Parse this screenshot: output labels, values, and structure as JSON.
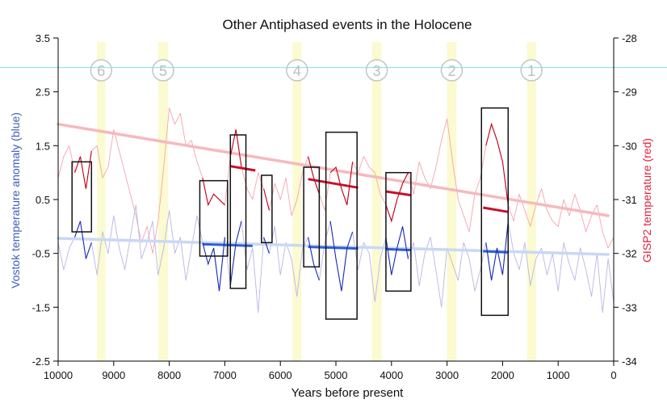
{
  "chart_data": {
    "type": "line",
    "title": "Other Antiphased events in the Holocene",
    "xlabel": "Years before present",
    "ylabel_left": "Vostok temperature anomaly (blue)",
    "ylabel_right": "GISP2 temperature (red)",
    "x_range": [
      10000,
      0
    ],
    "y_left_range": [
      -2.5,
      3.5
    ],
    "y_right_range": [
      -34,
      -28
    ],
    "x_ticks": [
      10000,
      9000,
      8000,
      7000,
      6000,
      5000,
      4000,
      3000,
      2000,
      1000,
      0
    ],
    "y_left_ticks": [
      3.5,
      2.5,
      1.5,
      0.5,
      -0.5,
      -1.5,
      -2.5
    ],
    "y_left_tick_labels": [
      "3.5",
      "2.5",
      "1.5",
      "0.5",
      "-0.5",
      "-1.5",
      "-2.5"
    ],
    "y_right_ticks": [
      -28,
      -29,
      -30,
      -31,
      -32,
      -33,
      -34
    ],
    "cyan_reference_left_value": 2.95,
    "event_bands": [
      {
        "label": "6",
        "from": 9300,
        "to": 9150
      },
      {
        "label": "5",
        "from": 8200,
        "to": 8020
      },
      {
        "label": "4",
        "from": 5780,
        "to": 5620
      },
      {
        "label": "3",
        "from": 4350,
        "to": 4180
      },
      {
        "label": "2",
        "from": 3000,
        "to": 2830
      },
      {
        "label": "1",
        "from": 1560,
        "to": 1400
      }
    ],
    "trend_lines": [
      {
        "name": "GISP2 trend",
        "axis": "right",
        "x": [
          10000,
          100
        ],
        "y": [
          -29.6,
          -31.3
        ]
      },
      {
        "name": "Vostok trend",
        "axis": "left",
        "x": [
          10000,
          100
        ],
        "y": [
          -0.22,
          -0.52
        ]
      }
    ],
    "highlight_segments": [
      {
        "axis": "right",
        "x": [
          6900,
          6450
        ],
        "y": [
          -30.38,
          -30.46
        ]
      },
      {
        "axis": "right",
        "x": [
          5500,
          4600
        ],
        "y": [
          -30.62,
          -30.78
        ]
      },
      {
        "axis": "right",
        "x": [
          4100,
          3650
        ],
        "y": [
          -30.85,
          -30.92
        ]
      },
      {
        "axis": "right",
        "x": [
          2350,
          1900
        ],
        "y": [
          -31.15,
          -31.23
        ]
      },
      {
        "axis": "left",
        "x": [
          7400,
          6500
        ],
        "y": [
          -0.33,
          -0.36
        ]
      },
      {
        "axis": "left",
        "x": [
          5500,
          4600
        ],
        "y": [
          -0.38,
          -0.41
        ]
      },
      {
        "axis": "left",
        "x": [
          4100,
          3650
        ],
        "y": [
          -0.42,
          -0.44
        ]
      },
      {
        "axis": "left",
        "x": [
          2350,
          1900
        ],
        "y": [
          -0.46,
          -0.48
        ]
      }
    ],
    "event_boxes": [
      {
        "x_from": 9750,
        "x_to": 9400,
        "y_left_top": 1.2,
        "y_left_bottom": -0.1
      },
      {
        "x_from": 7450,
        "x_to": 6950,
        "y_left_top": 0.85,
        "y_left_bottom": -0.55
      },
      {
        "x_from": 6900,
        "x_to": 6620,
        "y_left_top": 1.7,
        "y_left_bottom": -1.15
      },
      {
        "x_from": 6340,
        "x_to": 6150,
        "y_left_top": 0.95,
        "y_left_bottom": -0.3
      },
      {
        "x_from": 5580,
        "x_to": 5300,
        "y_left_top": 1.1,
        "y_left_bottom": -0.75
      },
      {
        "x_from": 5180,
        "x_to": 4620,
        "y_left_top": 1.75,
        "y_left_bottom": -1.72
      },
      {
        "x_from": 4100,
        "x_to": 3650,
        "y_left_top": 1.0,
        "y_left_bottom": -1.2
      },
      {
        "x_from": 2380,
        "x_to": 1900,
        "y_left_top": 2.2,
        "y_left_bottom": -1.65
      }
    ],
    "series": [
      {
        "name": "GISP2 temperature (red)",
        "axis": "right",
        "x": [
          10000,
          9900,
          9800,
          9700,
          9600,
          9500,
          9400,
          9300,
          9200,
          9100,
          9000,
          8900,
          8800,
          8700,
          8600,
          8500,
          8400,
          8300,
          8200,
          8100,
          8000,
          7900,
          7800,
          7700,
          7600,
          7500,
          7400,
          7300,
          7200,
          7100,
          7000,
          6900,
          6800,
          6700,
          6600,
          6500,
          6400,
          6300,
          6200,
          6100,
          6000,
          5900,
          5800,
          5700,
          5600,
          5500,
          5400,
          5300,
          5200,
          5100,
          5000,
          4900,
          4800,
          4700,
          4600,
          4500,
          4400,
          4300,
          4200,
          4100,
          4000,
          3900,
          3800,
          3700,
          3600,
          3500,
          3400,
          3300,
          3200,
          3100,
          3000,
          2900,
          2800,
          2700,
          2600,
          2500,
          2400,
          2300,
          2200,
          2100,
          2000,
          1900,
          1800,
          1700,
          1600,
          1500,
          1400,
          1300,
          1200,
          1100,
          1000,
          900,
          800,
          700,
          600,
          500,
          400,
          300,
          200,
          100,
          0
        ],
        "y": [
          -30.6,
          -30.2,
          -30.0,
          -30.5,
          -30.2,
          -30.8,
          -30.1,
          -30.0,
          -30.6,
          -30.4,
          -29.7,
          -30.1,
          -30.5,
          -30.9,
          -31.3,
          -31.8,
          -31.5,
          -32.0,
          -31.4,
          -30.4,
          -29.3,
          -29.6,
          -29.4,
          -30.0,
          -29.9,
          -30.3,
          -30.6,
          -31.1,
          -30.9,
          -31.0,
          -31.1,
          -30.2,
          -29.7,
          -30.4,
          -30.8,
          -31.0,
          -30.5,
          -30.8,
          -31.2,
          -30.7,
          -31.0,
          -30.6,
          -31.3,
          -31.0,
          -30.5,
          -30.2,
          -30.6,
          -30.9,
          -31.2,
          -30.5,
          -30.4,
          -30.8,
          -31.1,
          -30.3,
          -30.5,
          -30.2,
          -30.4,
          -30.5,
          -30.9,
          -31.1,
          -31.4,
          -31.0,
          -30.7,
          -30.5,
          -30.9,
          -30.3,
          -30.6,
          -30.8,
          -30.4,
          -29.9,
          -29.5,
          -30.3,
          -31.0,
          -31.3,
          -31.6,
          -30.9,
          -30.6,
          -30.0,
          -29.6,
          -29.9,
          -30.3,
          -31.1,
          -31.4,
          -30.9,
          -31.2,
          -31.5,
          -31.1,
          -30.8,
          -31.2,
          -31.4,
          -31.5,
          -31.0,
          -31.3,
          -30.9,
          -31.2,
          -31.6,
          -31.3,
          -31.1,
          -31.6,
          -31.9,
          -31.7
        ]
      },
      {
        "name": "Vostok temperature anomaly (blue)",
        "axis": "left",
        "x": [
          10000,
          9900,
          9800,
          9700,
          9600,
          9500,
          9400,
          9300,
          9200,
          9100,
          9000,
          8900,
          8800,
          8700,
          8600,
          8500,
          8400,
          8300,
          8200,
          8100,
          8000,
          7900,
          7800,
          7700,
          7600,
          7500,
          7400,
          7300,
          7200,
          7100,
          7000,
          6900,
          6800,
          6700,
          6600,
          6500,
          6400,
          6300,
          6200,
          6100,
          6000,
          5900,
          5800,
          5700,
          5600,
          5500,
          5400,
          5300,
          5200,
          5100,
          5000,
          4900,
          4800,
          4700,
          4600,
          4500,
          4400,
          4300,
          4200,
          4100,
          4000,
          3900,
          3800,
          3700,
          3600,
          3500,
          3400,
          3300,
          3200,
          3100,
          3000,
          2900,
          2800,
          2700,
          2600,
          2500,
          2400,
          2300,
          2200,
          2100,
          2000,
          1900,
          1800,
          1700,
          1600,
          1500,
          1400,
          1300,
          1200,
          1100,
          1000,
          900,
          800,
          700,
          600,
          500,
          400,
          300,
          200,
          100,
          0
        ],
        "y": [
          -0.3,
          -0.8,
          -0.4,
          -0.2,
          0.1,
          -0.6,
          -0.3,
          -0.9,
          -0.1,
          -0.5,
          0.2,
          -0.4,
          -0.8,
          -0.2,
          0.4,
          -0.6,
          -0.3,
          0.1,
          -0.9,
          -0.4,
          0.3,
          -0.5,
          -0.2,
          -1.0,
          -0.4,
          0.2,
          -0.3,
          -0.7,
          -0.4,
          -1.2,
          -0.2,
          -1.1,
          -0.3,
          0.1,
          -0.8,
          -0.4,
          -1.6,
          -0.2,
          -0.5,
          0.0,
          -0.9,
          -0.3,
          -0.6,
          -1.3,
          -0.4,
          -0.2,
          -0.7,
          -1.0,
          -0.3,
          0.1,
          -0.6,
          -1.2,
          -0.4,
          -0.1,
          -0.8,
          -0.3,
          -0.5,
          -1.4,
          -0.6,
          -0.2,
          -0.9,
          -0.4,
          0.0,
          -0.6,
          -0.3,
          -1.1,
          -0.5,
          -0.2,
          -0.8,
          -1.5,
          -0.4,
          -0.7,
          -1.0,
          -0.3,
          -0.6,
          -1.2,
          -0.8,
          -0.3,
          -1.0,
          -0.4,
          -0.9,
          0.1,
          -0.5,
          -0.8,
          -0.3,
          -1.1,
          -0.6,
          -0.4,
          -0.9,
          -0.5,
          -1.2,
          -0.3,
          -0.7,
          -1.0,
          -0.4,
          -0.8,
          -1.3,
          -0.5,
          -1.6,
          -0.6,
          -1.4
        ]
      }
    ]
  }
}
